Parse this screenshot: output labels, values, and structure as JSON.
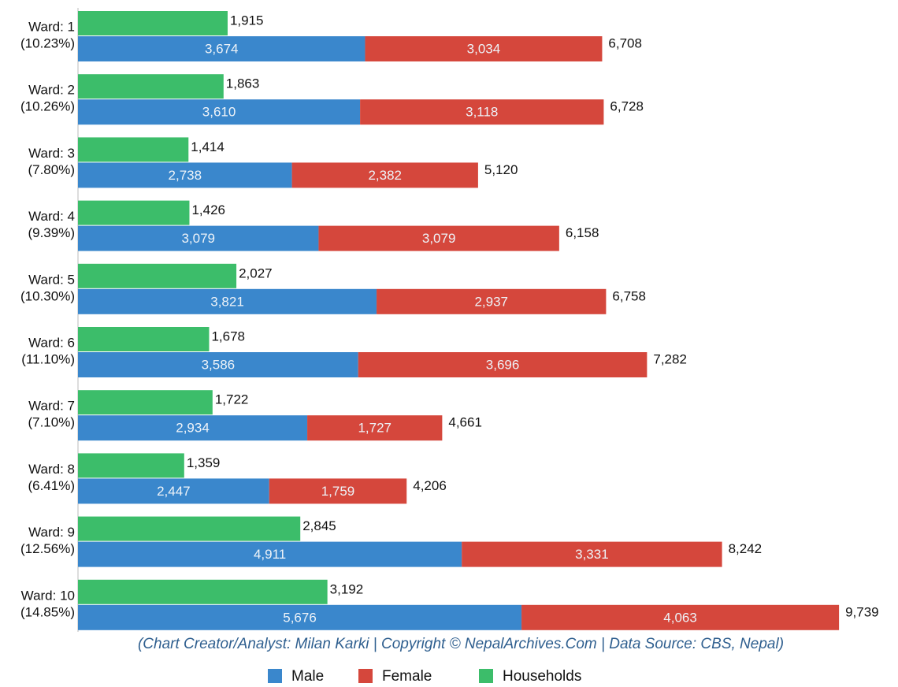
{
  "chart_data": {
    "type": "bar",
    "orientation": "horizontal",
    "categories": [
      "Ward: 1",
      "Ward: 2",
      "Ward: 3",
      "Ward: 4",
      "Ward: 5",
      "Ward: 6",
      "Ward: 7",
      "Ward: 8",
      "Ward: 9",
      "Ward: 10"
    ],
    "category_shares": [
      "(10.23%)",
      "(10.26%)",
      "(7.80%)",
      "(9.39%)",
      "(10.30%)",
      "(11.10%)",
      "(7.10%)",
      "(6.41%)",
      "(12.56%)",
      "(14.85%)"
    ],
    "xlim": [
      0,
      10000
    ],
    "series": [
      {
        "name": "Male",
        "color": "#3a87cc",
        "values": [
          3674,
          3610,
          2738,
          3079,
          3821,
          3586,
          2934,
          2447,
          4911,
          5676
        ],
        "value_labels": [
          "3,674",
          "3,610",
          "2,738",
          "3,079",
          "3,821",
          "3,586",
          "2,934",
          "2,447",
          "4,911",
          "5,676"
        ]
      },
      {
        "name": "Female",
        "color": "#d5473c",
        "values": [
          3034,
          3118,
          2382,
          3079,
          2937,
          3696,
          1727,
          1759,
          3331,
          4063
        ],
        "value_labels": [
          "3,034",
          "3,118",
          "2,382",
          "3,079",
          "2,937",
          "3,696",
          "1,727",
          "1,759",
          "3,331",
          "4,063"
        ]
      },
      {
        "name": "Households",
        "color": "#3cbd6a",
        "values": [
          1915,
          1863,
          1414,
          1426,
          2027,
          1678,
          1722,
          1359,
          2845,
          3192
        ],
        "value_labels": [
          "1,915",
          "1,863",
          "1,414",
          "1,426",
          "2,027",
          "1,678",
          "1,722",
          "1,359",
          "2,845",
          "3,192"
        ]
      }
    ],
    "totals": [
      6708,
      6728,
      5120,
      6158,
      6758,
      7282,
      4661,
      4206,
      8242,
      9739
    ],
    "total_labels": [
      "6,708",
      "6,728",
      "5,120",
      "6,158",
      "6,758",
      "7,282",
      "4,661",
      "4,206",
      "8,242",
      "9,739"
    ],
    "caption": "(Chart Creator/Analyst: Milan Karki | Copyright © NepalArchives.Com | Data Source: CBS, Nepal)",
    "legend": "bottom"
  }
}
